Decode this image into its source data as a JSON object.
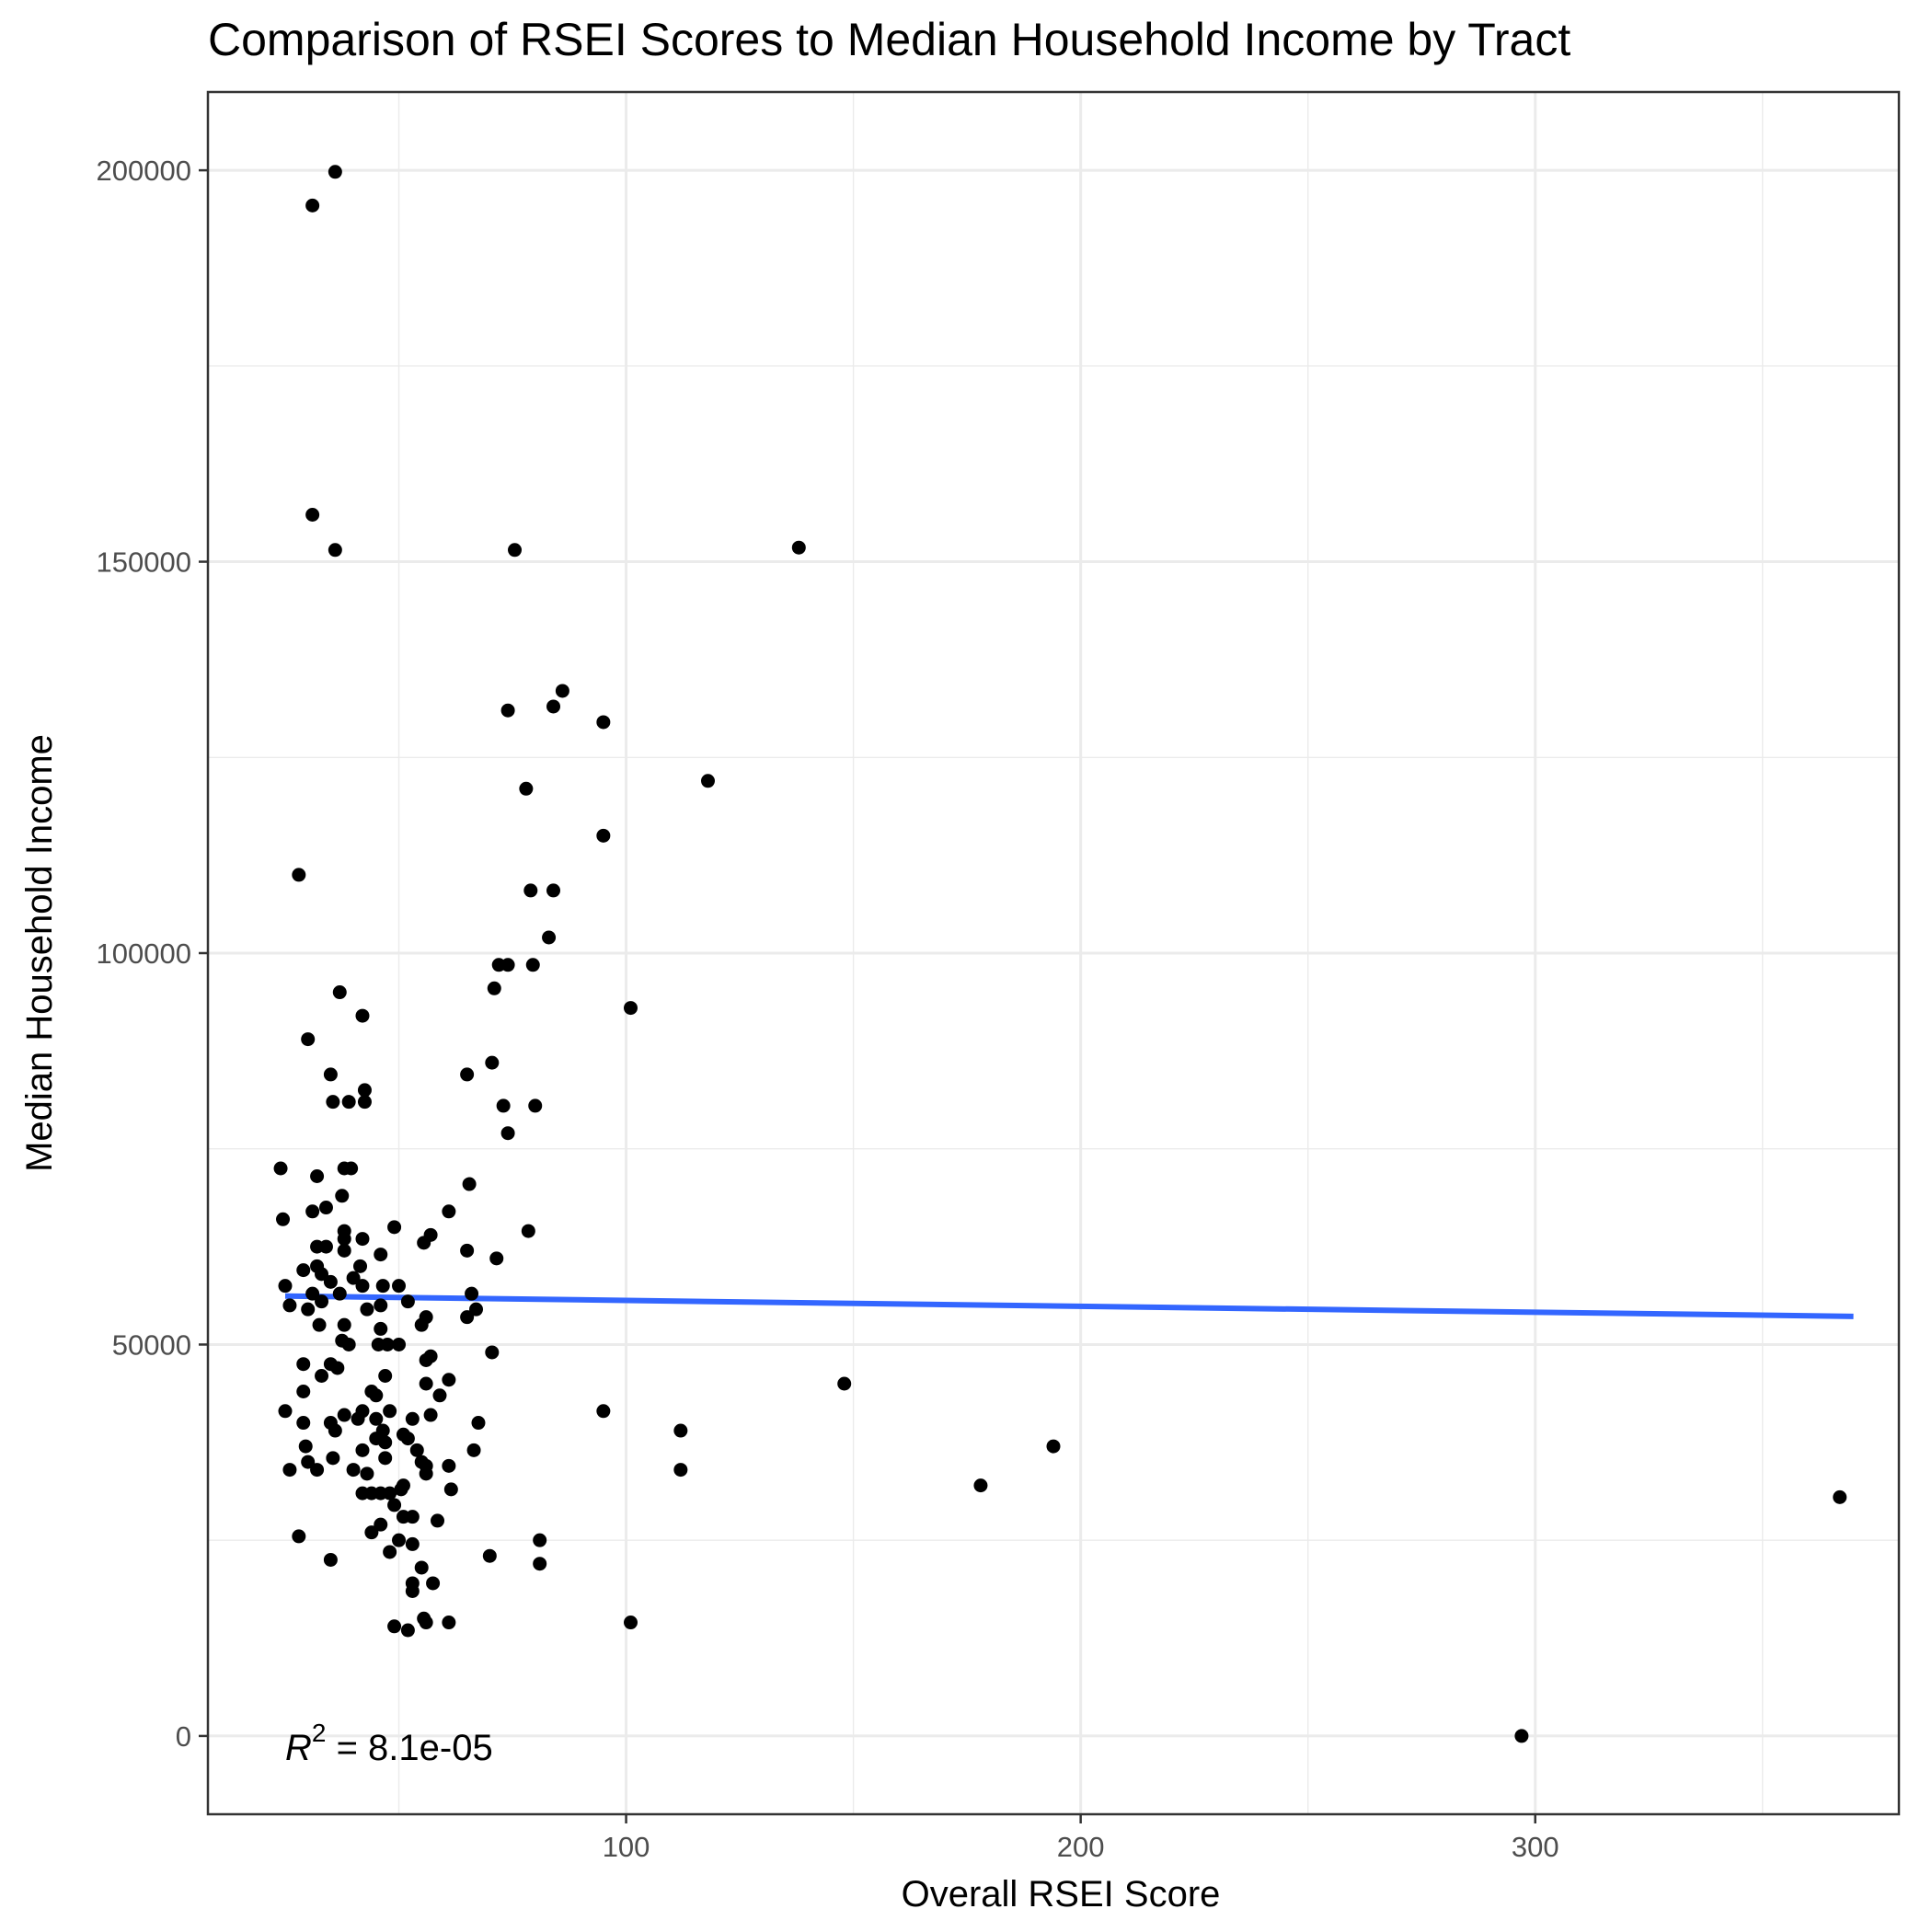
{
  "chart_data": {
    "type": "scatter",
    "title": "Comparison of RSEI Scores to Median Household Income by Tract",
    "xlabel": "Overall RSEI Score",
    "ylabel": "Median Household Income",
    "xlim": [
      8,
      380
    ],
    "ylim": [
      -10000,
      210000
    ],
    "x_ticks": [
      100,
      200,
      300
    ],
    "x_tick_labels": [
      "100",
      "200",
      "300"
    ],
    "x_minor_ticks": [
      50,
      150,
      250,
      350
    ],
    "y_ticks": [
      0,
      50000,
      100000,
      150000,
      200000
    ],
    "y_tick_labels": [
      "0",
      "50000",
      "100000",
      "150000",
      "200000"
    ],
    "y_minor_ticks": [
      25000,
      75000,
      125000,
      175000
    ],
    "grid": true,
    "colors": {
      "points": "#000000",
      "fit_line": "#3366ff",
      "grid": "#ebebeb",
      "panel_border": "#333333"
    },
    "annotation": {
      "r_label": "R",
      "r_power": "2",
      "r_value": " = 8.1e-05"
    },
    "fit_line": {
      "x": [
        25,
        370
      ],
      "y": [
        56200,
        53600
      ]
    },
    "points": [
      [
        36,
        199800
      ],
      [
        31,
        195500
      ],
      [
        31,
        156000
      ],
      [
        36,
        151500
      ],
      [
        75.5,
        151500
      ],
      [
        138,
        151800
      ],
      [
        86,
        133500
      ],
      [
        74,
        131000
      ],
      [
        84,
        131500
      ],
      [
        95,
        129500
      ],
      [
        118,
        122000
      ],
      [
        78,
        121000
      ],
      [
        95,
        115000
      ],
      [
        28,
        110000
      ],
      [
        79,
        108000
      ],
      [
        84,
        108000
      ],
      [
        83,
        102000
      ],
      [
        79.5,
        98500
      ],
      [
        72,
        98500
      ],
      [
        74,
        98500
      ],
      [
        71,
        95500
      ],
      [
        37,
        95000
      ],
      [
        101,
        93000
      ],
      [
        42,
        92000
      ],
      [
        30,
        89000
      ],
      [
        35,
        84500
      ],
      [
        70.5,
        86000
      ],
      [
        65,
        84500
      ],
      [
        35.5,
        81000
      ],
      [
        39,
        81000
      ],
      [
        42.5,
        81000
      ],
      [
        42.5,
        82500
      ],
      [
        73,
        80500
      ],
      [
        80,
        80500
      ],
      [
        74,
        77000
      ],
      [
        24,
        72500
      ],
      [
        32,
        71500
      ],
      [
        38,
        72500
      ],
      [
        39.5,
        72500
      ],
      [
        65.5,
        70500
      ],
      [
        37.5,
        69000
      ],
      [
        34,
        67500
      ],
      [
        31,
        67000
      ],
      [
        61,
        67000
      ],
      [
        24.5,
        66000
      ],
      [
        49,
        65000
      ],
      [
        78.5,
        64500
      ],
      [
        38,
        64500
      ],
      [
        38,
        63500
      ],
      [
        42,
        63500
      ],
      [
        57,
        64000
      ],
      [
        55.5,
        63000
      ],
      [
        32,
        62500
      ],
      [
        34,
        62500
      ],
      [
        38,
        62000
      ],
      [
        46,
        61500
      ],
      [
        65,
        62000
      ],
      [
        71.5,
        61000
      ],
      [
        41.5,
        60000
      ],
      [
        29,
        59500
      ],
      [
        32,
        60000
      ],
      [
        33,
        59000
      ],
      [
        35,
        58000
      ],
      [
        40,
        58500
      ],
      [
        25,
        57500
      ],
      [
        42,
        57500
      ],
      [
        46.5,
        57500
      ],
      [
        50,
        57500
      ],
      [
        31,
        56500
      ],
      [
        33,
        55500
      ],
      [
        37,
        56500
      ],
      [
        46,
        55000
      ],
      [
        52,
        55500
      ],
      [
        66,
        56500
      ],
      [
        26,
        55000
      ],
      [
        30,
        54500
      ],
      [
        43,
        54500
      ],
      [
        56,
        53500
      ],
      [
        65,
        53500
      ],
      [
        67,
        54500
      ],
      [
        32.5,
        52500
      ],
      [
        38,
        52500
      ],
      [
        46,
        52000
      ],
      [
        55,
        52500
      ],
      [
        37.5,
        50500
      ],
      [
        39,
        50000
      ],
      [
        45.5,
        50000
      ],
      [
        47.5,
        50000
      ],
      [
        50,
        50000
      ],
      [
        70.5,
        49000
      ],
      [
        56,
        48000
      ],
      [
        57,
        48500
      ],
      [
        29,
        47500
      ],
      [
        35,
        47500
      ],
      [
        36.5,
        47000
      ],
      [
        33,
        46000
      ],
      [
        47,
        46000
      ],
      [
        56,
        45000
      ],
      [
        61,
        45500
      ],
      [
        29,
        44000
      ],
      [
        44,
        44000
      ],
      [
        45,
        43500
      ],
      [
        59,
        43500
      ],
      [
        25,
        41500
      ],
      [
        38,
        41000
      ],
      [
        42,
        41500
      ],
      [
        48,
        41500
      ],
      [
        57,
        41000
      ],
      [
        29,
        40000
      ],
      [
        35,
        40000
      ],
      [
        41,
        40500
      ],
      [
        45,
        40500
      ],
      [
        53,
        40500
      ],
      [
        67.5,
        40000
      ],
      [
        36,
        39000
      ],
      [
        46.5,
        39000
      ],
      [
        51,
        38500
      ],
      [
        45,
        38000
      ],
      [
        52,
        38000
      ],
      [
        47,
        37500
      ],
      [
        29.5,
        37000
      ],
      [
        42,
        36500
      ],
      [
        54,
        36500
      ],
      [
        35.5,
        35500
      ],
      [
        47,
        35500
      ],
      [
        66.5,
        36500
      ],
      [
        30,
        35000
      ],
      [
        55,
        35000
      ],
      [
        56,
        34500
      ],
      [
        61,
        34500
      ],
      [
        26,
        34000
      ],
      [
        32,
        34000
      ],
      [
        40,
        34000
      ],
      [
        43,
        33500
      ],
      [
        56,
        33500
      ],
      [
        112,
        39000
      ],
      [
        112,
        34000
      ],
      [
        148,
        45000
      ],
      [
        194,
        37000
      ],
      [
        178,
        32000
      ],
      [
        95,
        41500
      ],
      [
        44,
        31000
      ],
      [
        42,
        31000
      ],
      [
        46,
        31000
      ],
      [
        48,
        31000
      ],
      [
        50.5,
        31500
      ],
      [
        51,
        32000
      ],
      [
        61.5,
        31500
      ],
      [
        49,
        29500
      ],
      [
        51,
        28000
      ],
      [
        53,
        28000
      ],
      [
        46,
        27000
      ],
      [
        58.5,
        27500
      ],
      [
        44,
        26000
      ],
      [
        28,
        25500
      ],
      [
        50,
        25000
      ],
      [
        53,
        24500
      ],
      [
        81,
        25000
      ],
      [
        48,
        23500
      ],
      [
        70,
        23000
      ],
      [
        35,
        22500
      ],
      [
        55,
        21500
      ],
      [
        81,
        22000
      ],
      [
        53,
        19500
      ],
      [
        57.5,
        19500
      ],
      [
        53,
        18500
      ],
      [
        101,
        14500
      ],
      [
        55.5,
        15000
      ],
      [
        56,
        14500
      ],
      [
        49,
        14000
      ],
      [
        52,
        13500
      ],
      [
        61,
        14500
      ],
      [
        297,
        0
      ],
      [
        367,
        30500
      ]
    ]
  }
}
